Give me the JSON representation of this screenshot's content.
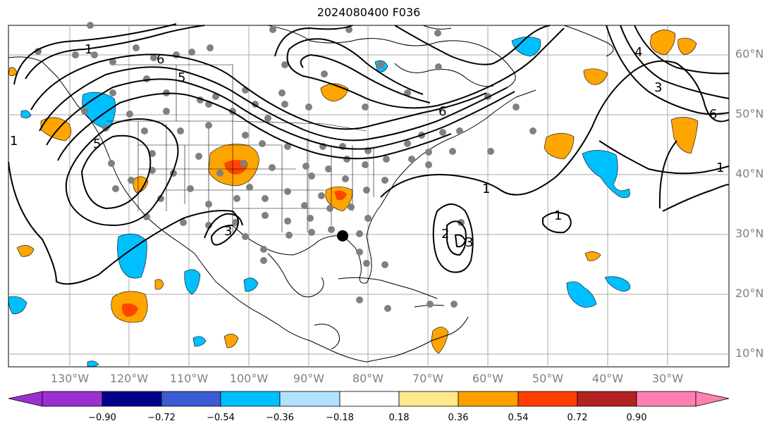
{
  "title": "2024080400 F036",
  "lat_labels": [
    "60°N",
    "50°N",
    "40°N",
    "30°N",
    "20°N",
    "10°N"
  ],
  "lon_labels": [
    "130°W",
    "120°W",
    "110°W",
    "100°W",
    "90°W",
    "80°W",
    "70°W",
    "60°W",
    "50°W",
    "40°W",
    "30°W"
  ],
  "contour_labels": [
    "1",
    "1",
    "1",
    "1",
    "1",
    "2",
    "3",
    "3",
    "3",
    "5",
    "5",
    "6",
    "6",
    "6",
    "4"
  ],
  "colorbar": {
    "ticks": [
      "−0.90",
      "−0.72",
      "−0.54",
      "−0.36",
      "−0.18",
      "0.18",
      "0.36",
      "0.54",
      "0.72",
      "0.90"
    ],
    "colors": [
      "#9b30d0",
      "#00008b",
      "#3a5bd1",
      "#00bfff",
      "#b0e2ff",
      "#ffffff",
      "#ffe88a",
      "#ffa000",
      "#ff3e00",
      "#b22222",
      "#ff80b0"
    ]
  },
  "colors": {
    "positive_mid": "#ffa500",
    "positive_high": "#ff4500",
    "negative_mid": "#00bfff",
    "station_dot": "#808080",
    "contour": "#000000",
    "grid": "#a0a0a0"
  }
}
